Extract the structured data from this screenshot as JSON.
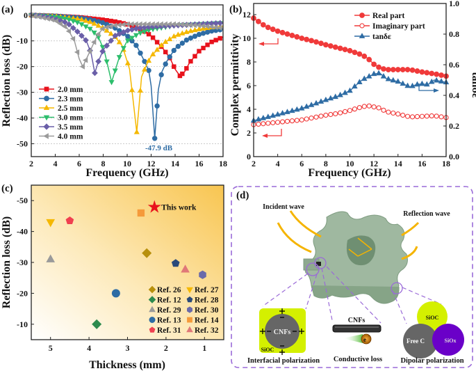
{
  "panel_labels": {
    "a": "(a)",
    "b": "(b)",
    "c": "(c)",
    "d": "(d)"
  },
  "chart_data": [
    {
      "type": "line",
      "panel": "(a)",
      "xlabel": "Frequency (GHz)",
      "ylabel": "Reflection loss (dB)",
      "xlim": [
        2,
        18
      ],
      "ylim": [
        -55,
        4
      ],
      "xticks": [
        "2",
        "4",
        "6",
        "8",
        "10",
        "12",
        "14",
        "16",
        "18"
      ],
      "yticks": [
        "0",
        "-10",
        "-20",
        "-30",
        "-40",
        "-50"
      ],
      "grid": "horizontal dashed",
      "legend_position": "bottom-left",
      "annotation": "-47.9 dB",
      "series": [
        {
          "name": "2.0 mm",
          "color": "#e8121c",
          "marker": "square",
          "x": [
            2,
            4,
            6,
            8,
            9,
            10,
            11,
            12,
            13,
            13.6,
            14,
            14.4,
            14.8,
            15.2,
            16,
            17,
            18
          ],
          "y": [
            0,
            -0.3,
            -0.8,
            -1.8,
            -2.5,
            -3.5,
            -5,
            -8,
            -13,
            -17,
            -21,
            -23.6,
            -22,
            -18.5,
            -14,
            -10.5,
            -8.5
          ]
        },
        {
          "name": "2.3 mm",
          "color": "#2e6ca4",
          "marker": "circle",
          "x": [
            2,
            4,
            6,
            7,
            8,
            9,
            10,
            10.8,
            11.4,
            11.8,
            12,
            12.3,
            12.6,
            12.9,
            13.3,
            14,
            15,
            16,
            17,
            18
          ],
          "y": [
            0,
            -0.3,
            -1,
            -1.8,
            -3,
            -5,
            -8,
            -12,
            -17.5,
            -21.5,
            -27.5,
            -47.9,
            -29,
            -22,
            -18,
            -13,
            -9.5,
            -7.5,
            -6.2,
            -5.5
          ]
        },
        {
          "name": "2.5 mm",
          "color": "#f5b800",
          "marker": "triangle-up",
          "x": [
            2,
            4,
            6,
            7,
            8,
            9,
            9.6,
            10.2,
            10.8,
            11.2,
            11.6,
            12,
            13,
            14,
            15,
            16,
            17,
            18
          ],
          "y": [
            0,
            -0.5,
            -1.5,
            -2.8,
            -5,
            -8.5,
            -12,
            -21,
            -45.5,
            -24,
            -19.5,
            -16,
            -11,
            -8,
            -6.5,
            -5.5,
            -4.8,
            -4.3
          ]
        },
        {
          "name": "3.0 mm",
          "color": "#2dbe6c",
          "marker": "triangle-down",
          "x": [
            2,
            4,
            5,
            6,
            7,
            7.6,
            8.1,
            8.4,
            8.7,
            9.1,
            9.4,
            10,
            11,
            12,
            14,
            16,
            18
          ],
          "y": [
            0,
            -0.8,
            -1.5,
            -3,
            -5.5,
            -8.5,
            -14,
            -20,
            -26,
            -20,
            -15.5,
            -10,
            -7,
            -5.5,
            -4,
            -3.5,
            -3
          ]
        },
        {
          "name": "3.5 mm",
          "color": "#6a5fa8",
          "marker": "diamond",
          "x": [
            2,
            3,
            4,
            5,
            6,
            6.6,
            7,
            7.3,
            7.6,
            8,
            9,
            10,
            11,
            12,
            14,
            16,
            18
          ],
          "y": [
            0,
            -0.5,
            -1.5,
            -3,
            -7,
            -10,
            -15,
            -22.5,
            -18,
            -13.5,
            -8,
            -6,
            -5,
            -4.5,
            -4,
            -3.5,
            -3
          ]
        },
        {
          "name": "4.0 mm",
          "color": "#9a9a9a",
          "marker": "triangle-left",
          "x": [
            2,
            3,
            4,
            5,
            5.6,
            6,
            6.3,
            6.6,
            7,
            7.5,
            8,
            9,
            10,
            12,
            14,
            16,
            18
          ],
          "y": [
            0,
            -1,
            -2,
            -5,
            -10,
            -17,
            -20,
            -17,
            -13,
            -8,
            -5,
            -4,
            -3.5,
            -3.5,
            -3.5,
            -4,
            -5
          ]
        }
      ]
    },
    {
      "type": "line",
      "panel": "(b)",
      "xlabel": "Frequency (GHz)",
      "ylabel": "Complex permittivity",
      "y2label": "tanδε",
      "xlim": [
        2,
        18
      ],
      "ylim": [
        0,
        12.94
      ],
      "y2lim": [
        0,
        1.0
      ],
      "xticks": [
        "2",
        "4",
        "6",
        "8",
        "10",
        "12",
        "14",
        "16",
        "18"
      ],
      "yticks": [
        "0",
        "2",
        "4",
        "6",
        "8",
        "10",
        "12"
      ],
      "y2ticks": [
        "0.0",
        "0.2",
        "0.4",
        "0.6",
        "0.8",
        "1.0"
      ],
      "legend_position": "top-right",
      "series": [
        {
          "name": "Real part",
          "color": "#f03a3a",
          "marker": "circle-filled",
          "axis": "left",
          "x": [
            2,
            3,
            4,
            5,
            6,
            7,
            8,
            9,
            10,
            11,
            11.5,
            12,
            12.5,
            13,
            14,
            15,
            16,
            17,
            18
          ],
          "y": [
            11.7,
            11.0,
            10.6,
            10.3,
            10.0,
            9.75,
            9.45,
            9.2,
            8.95,
            8.6,
            8.3,
            7.8,
            7.5,
            7.35,
            7.35,
            7.35,
            7.15,
            7.0,
            6.8
          ]
        },
        {
          "name": "Imaginary part",
          "color": "#f03a3a",
          "marker": "circle-open",
          "axis": "left",
          "x": [
            2,
            4,
            6,
            8,
            9,
            10,
            11,
            11.5,
            12,
            12.5,
            13,
            14,
            15,
            16,
            17,
            18
          ],
          "y": [
            2.7,
            2.9,
            3.1,
            3.5,
            3.65,
            3.9,
            4.2,
            4.3,
            4.2,
            4.1,
            3.8,
            3.6,
            3.35,
            3.4,
            3.45,
            3.3
          ]
        },
        {
          "name": "tanδε",
          "color": "#2e6ca4",
          "marker": "triangle-up",
          "axis": "right",
          "x": [
            2,
            4,
            6,
            8,
            9,
            10,
            11,
            12,
            12.5,
            13,
            14,
            15,
            15.5,
            16,
            16.5,
            17,
            18
          ],
          "y": [
            0.235,
            0.275,
            0.315,
            0.37,
            0.395,
            0.43,
            0.5,
            0.54,
            0.545,
            0.51,
            0.49,
            0.455,
            0.47,
            0.475,
            0.47,
            0.5,
            0.485
          ]
        }
      ]
    },
    {
      "type": "scatter",
      "panel": "(c)",
      "xlabel": "Thickness (mm)",
      "ylabel": "Reflection loss (dB)",
      "xlim": [
        5.5,
        0.5
      ],
      "ylim": [
        -55,
        -5
      ],
      "xticks": [
        "5",
        "4",
        "3",
        "2",
        "1"
      ],
      "yticks": [
        "-50",
        "-40",
        "-30",
        "-20",
        "-10"
      ],
      "legend_position": "bottom-right",
      "points": [
        {
          "name": "This work",
          "x": 2.3,
          "y": -47.9,
          "color": "#e8121c",
          "marker": "star"
        },
        {
          "name": "Ref. 26",
          "x": 2.5,
          "y": -33,
          "color": "#b8900c",
          "marker": "diamond"
        },
        {
          "name": "Ref. 27",
          "x": 5.0,
          "y": -43,
          "color": "#f5b800",
          "marker": "triangle-down"
        },
        {
          "name": "Ref. 12",
          "x": 3.8,
          "y": -10,
          "color": "#2e8b4e",
          "marker": "diamond"
        },
        {
          "name": "Ref. 28",
          "x": 1.75,
          "y": -29.7,
          "color": "#2a4a7a",
          "marker": "pentagon"
        },
        {
          "name": "Ref. 29",
          "x": 5.0,
          "y": -31,
          "color": "#9a9a9a",
          "marker": "triangle-up"
        },
        {
          "name": "Ref. 30",
          "x": 1.05,
          "y": -26,
          "color": "#6a6aaa",
          "marker": "hexagon"
        },
        {
          "name": "Ref. 13",
          "x": 3.3,
          "y": -20,
          "color": "#2e6ca4",
          "marker": "circle"
        },
        {
          "name": "Ref. 14",
          "x": 2.65,
          "y": -46,
          "color": "#f59a3a",
          "marker": "square"
        },
        {
          "name": "Ref. 31",
          "x": 4.5,
          "y": -43.5,
          "color": "#f04050",
          "marker": "pentagon"
        },
        {
          "name": "Ref. 32",
          "x": 1.5,
          "y": -27.7,
          "color": "#e07878",
          "marker": "triangle-up"
        }
      ]
    }
  ],
  "diagram": {
    "incident_wave": "Incident wave",
    "reflection_wave": "Reflection wave",
    "interfacial": {
      "core": "CNFs",
      "shell": "SiOC",
      "caption": "Interfacial polarization"
    },
    "conductive": {
      "rod": "CNFs",
      "electron": "e",
      "electron_sup": "-",
      "caption": "Conductive loss"
    },
    "dipolar": {
      "a": "SiOC",
      "b": "Free C",
      "c": "SiOx",
      "caption": "Dipolar polarization"
    },
    "colors": {
      "scaffold": "#9fb8a0",
      "wave": "#f5b400",
      "frame": "#9a6ad8",
      "siox": "#6a00c8",
      "sioc": "#d4f000"
    }
  }
}
